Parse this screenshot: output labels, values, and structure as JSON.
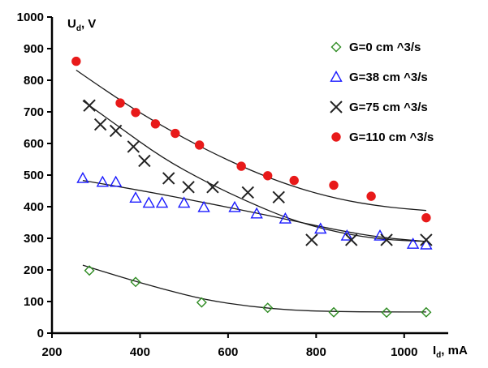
{
  "chart_data": {
    "type": "scatter",
    "xlabel": "I_d, mA",
    "ylabel": "U_d, V",
    "xlim": [
      200,
      1100
    ],
    "ylim": [
      0,
      1000
    ],
    "x_ticks": [
      200,
      400,
      600,
      800,
      1000
    ],
    "y_ticks": [
      0,
      100,
      200,
      300,
      400,
      500,
      600,
      700,
      800,
      900,
      1000
    ],
    "x_axis_label": {
      "main": "I",
      "sub": "d",
      "rest": ", mA"
    },
    "y_axis_label": {
      "main": "U",
      "sub": "d",
      "rest": ", V"
    },
    "legend_position": "top-right",
    "grid": false,
    "series": [
      {
        "name": "G=0 cm ^3/s",
        "marker": "diamond",
        "color": "#2e8b22",
        "points": [
          [
            285,
            198
          ],
          [
            390,
            162
          ],
          [
            540,
            97
          ],
          [
            690,
            80
          ],
          [
            840,
            66
          ],
          [
            960,
            65
          ],
          [
            1050,
            66
          ]
        ],
        "trend": [
          [
            270,
            215
          ],
          [
            350,
            180
          ],
          [
            450,
            140
          ],
          [
            550,
            105
          ],
          [
            650,
            84
          ],
          [
            750,
            72
          ],
          [
            850,
            68
          ],
          [
            950,
            67
          ],
          [
            1050,
            67
          ]
        ]
      },
      {
        "name": "G=38 cm ^3/s",
        "marker": "triangle",
        "color": "#1a1aff",
        "points": [
          [
            270,
            490
          ],
          [
            315,
            478
          ],
          [
            345,
            478
          ],
          [
            390,
            428
          ],
          [
            420,
            412
          ],
          [
            450,
            412
          ],
          [
            500,
            412
          ],
          [
            545,
            398
          ],
          [
            615,
            398
          ],
          [
            665,
            378
          ],
          [
            730,
            362
          ],
          [
            810,
            330
          ],
          [
            870,
            308
          ],
          [
            945,
            308
          ],
          [
            1020,
            282
          ],
          [
            1050,
            280
          ]
        ],
        "trend": [
          [
            270,
            483
          ],
          [
            400,
            452
          ],
          [
            550,
            412
          ],
          [
            700,
            370
          ],
          [
            850,
            325
          ],
          [
            950,
            302
          ],
          [
            1050,
            290
          ]
        ]
      },
      {
        "name": "G=75 cm ^3/s",
        "marker": "cross",
        "color": "#222222",
        "points": [
          [
            285,
            720
          ],
          [
            310,
            660
          ],
          [
            345,
            640
          ],
          [
            385,
            590
          ],
          [
            410,
            545
          ],
          [
            465,
            490
          ],
          [
            510,
            462
          ],
          [
            565,
            462
          ],
          [
            645,
            445
          ],
          [
            715,
            430
          ],
          [
            790,
            295
          ],
          [
            880,
            295
          ],
          [
            960,
            295
          ],
          [
            1050,
            295
          ]
        ],
        "trend": [
          [
            270,
            735
          ],
          [
            350,
            655
          ],
          [
            450,
            555
          ],
          [
            550,
            478
          ],
          [
            650,
            412
          ],
          [
            750,
            355
          ],
          [
            850,
            318
          ],
          [
            950,
            296
          ],
          [
            1050,
            290
          ]
        ]
      },
      {
        "name": "G=110 cm ^3/s",
        "marker": "circle",
        "color": "#e81a1a",
        "points": [
          [
            255,
            860
          ],
          [
            355,
            728
          ],
          [
            390,
            698
          ],
          [
            435,
            662
          ],
          [
            480,
            632
          ],
          [
            535,
            595
          ],
          [
            630,
            528
          ],
          [
            690,
            498
          ],
          [
            750,
            483
          ],
          [
            840,
            468
          ],
          [
            925,
            433
          ],
          [
            1050,
            365
          ]
        ],
        "trend": [
          [
            255,
            832
          ],
          [
            350,
            740
          ],
          [
            450,
            655
          ],
          [
            550,
            580
          ],
          [
            650,
            515
          ],
          [
            750,
            462
          ],
          [
            850,
            424
          ],
          [
            950,
            400
          ],
          [
            1050,
            388
          ]
        ]
      }
    ]
  }
}
